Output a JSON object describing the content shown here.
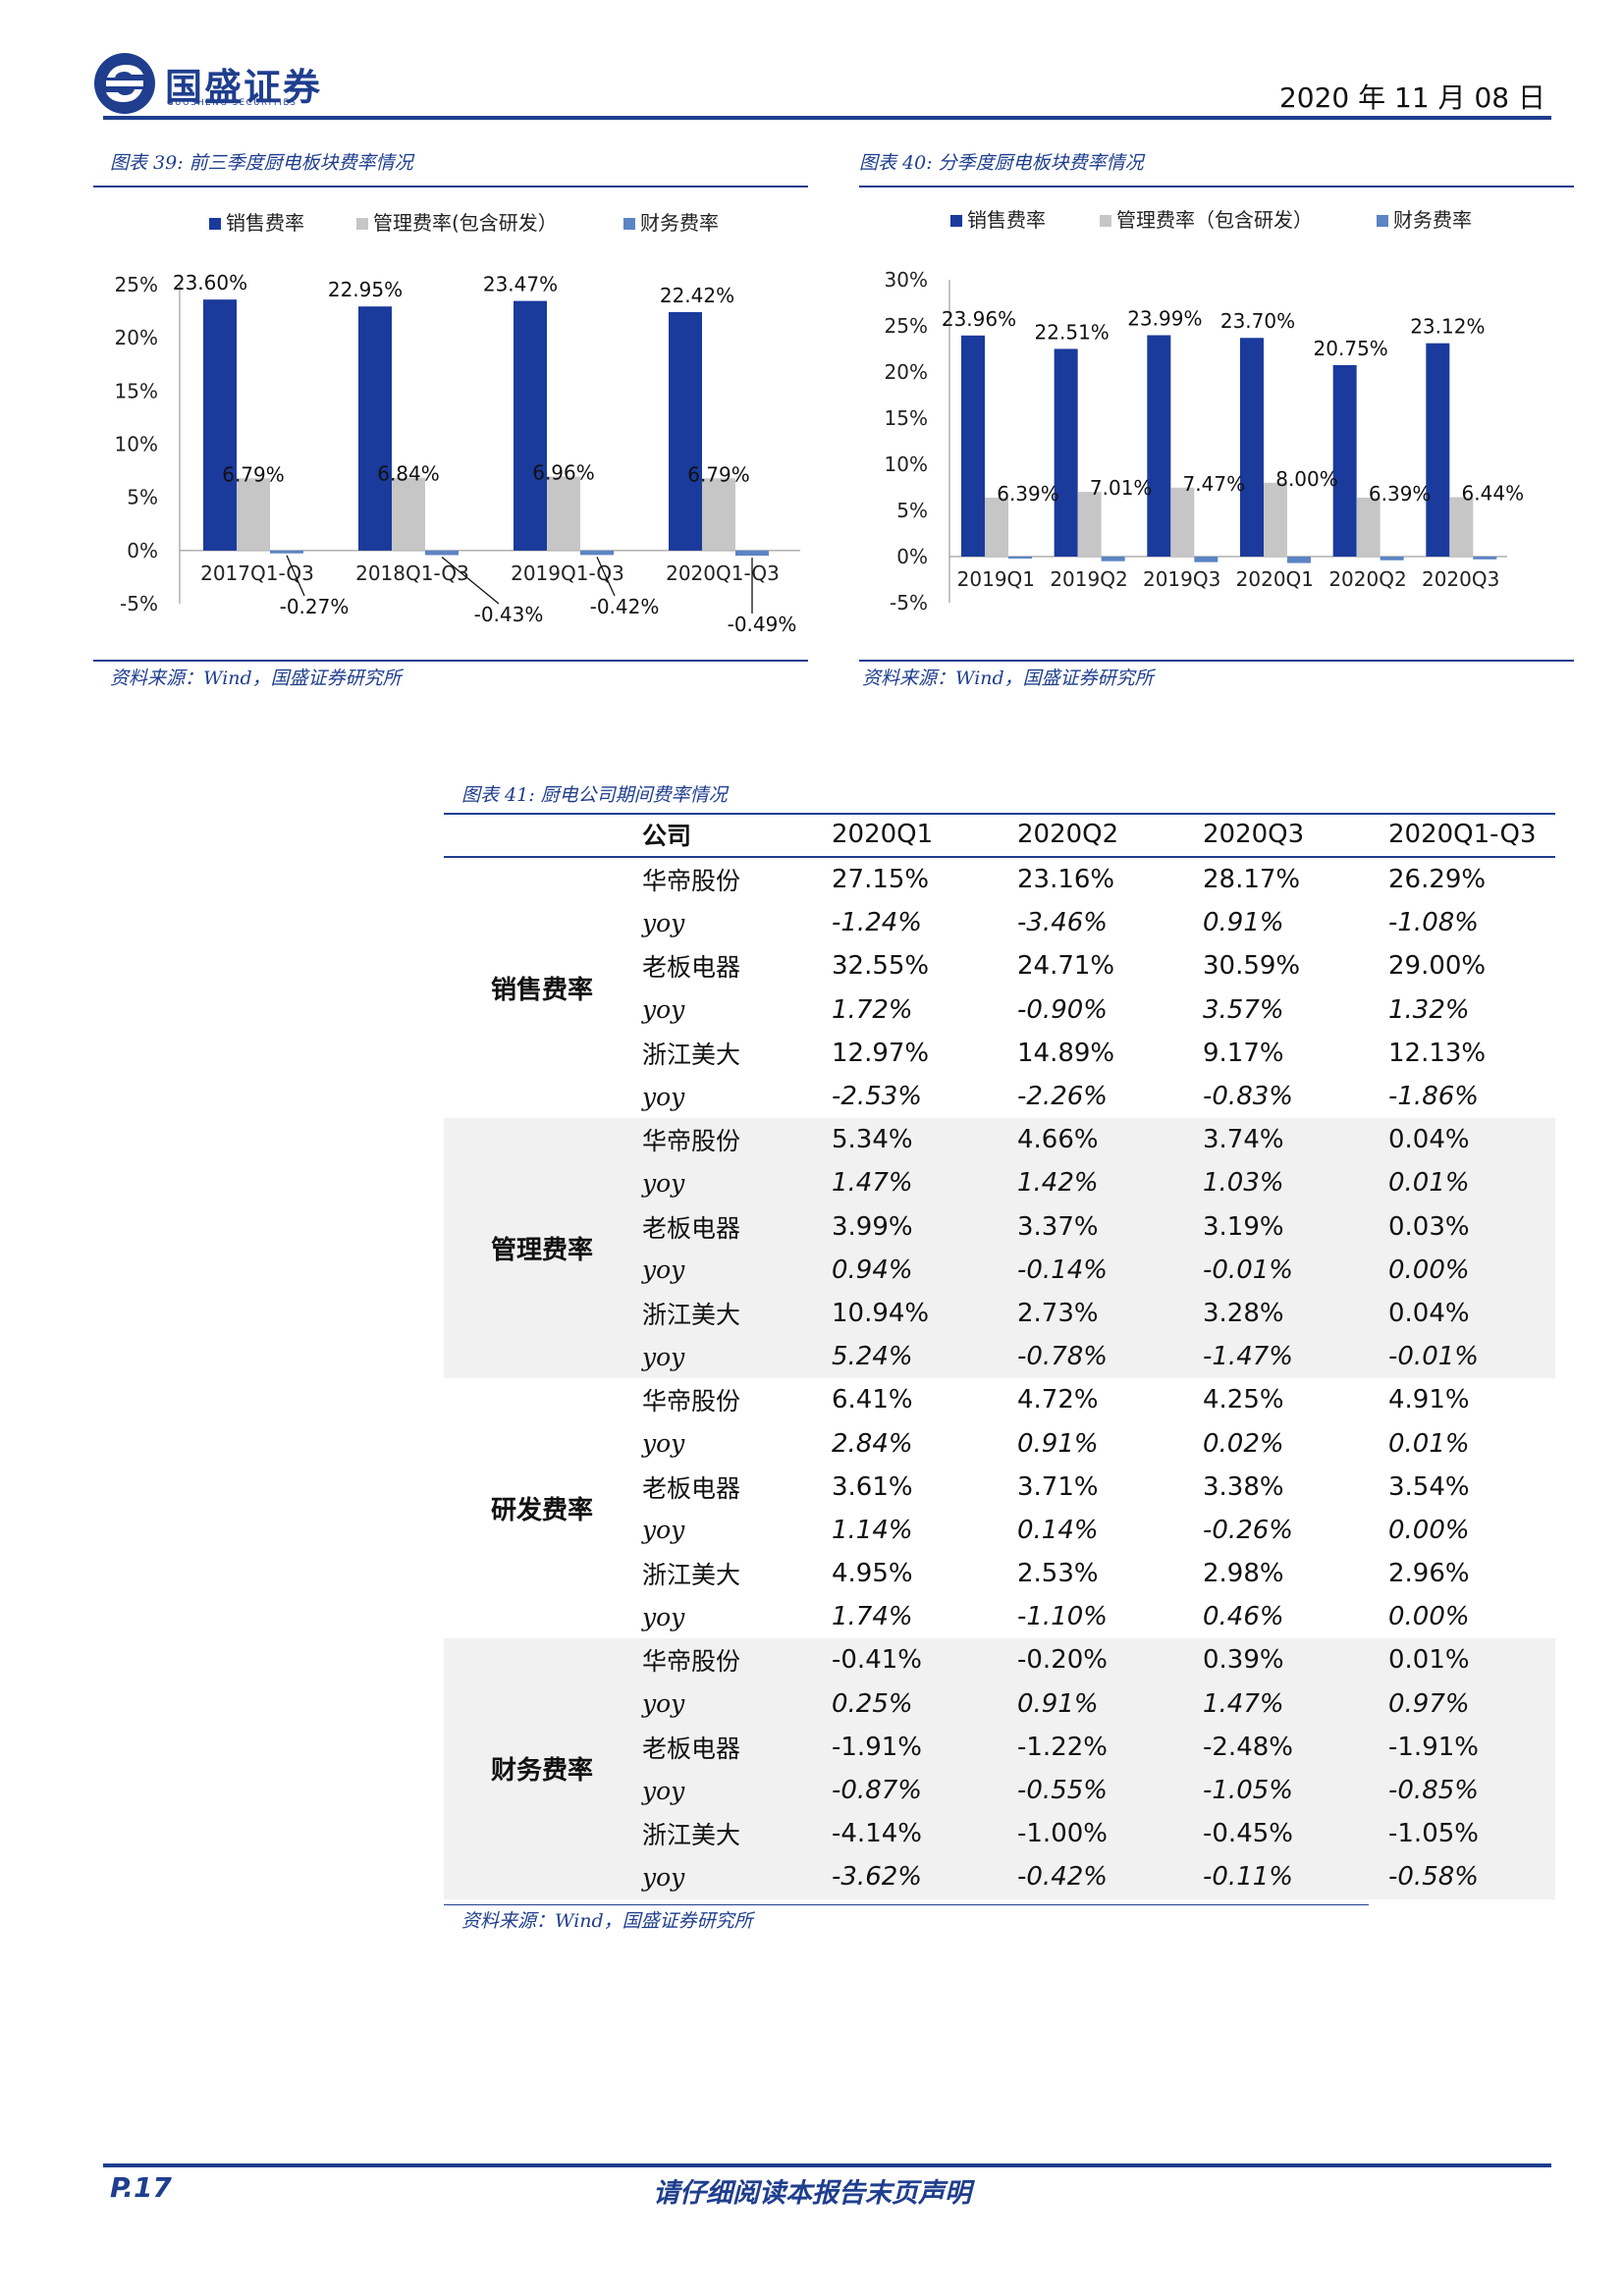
{
  "header": {
    "company_cn": "国盛证券",
    "company_en": "GUOSHENG SECURITIES",
    "date": "2020 年 11 月 08 日"
  },
  "colors": {
    "brand": "#1f3e8e",
    "sales": "#1a3a9c",
    "mgmt": "#c6c6c6",
    "fin": "#5b84c4"
  },
  "charts": [
    {
      "caption": "图表 39:  前三季度厨电板块费率情况",
      "source": "资料来源：Wind，国盛证券研究所",
      "legend": [
        "销售费率",
        "管理费率(包含研发）",
        "财务费率"
      ]
    },
    {
      "caption": "图表 40:  分季度厨电板块费率情况",
      "source": "资料来源：Wind，国盛证券研究所",
      "legend": [
        "销售费率",
        "管理费率（包含研发）",
        "财务费率"
      ]
    }
  ],
  "chart_data": [
    {
      "type": "bar",
      "categories": [
        "2017Q1-Q3",
        "2018Q1-Q3",
        "2019Q1-Q3",
        "2020Q1-Q3"
      ],
      "series": [
        {
          "name": "销售费率",
          "values": [
            23.6,
            22.95,
            23.47,
            22.42
          ],
          "labels": [
            "23.60%",
            "22.95%",
            "23.47%",
            "22.42%"
          ]
        },
        {
          "name": "管理费率(包含研发）",
          "values": [
            6.79,
            6.84,
            6.96,
            6.79
          ],
          "labels": [
            "6.79%",
            "6.84%",
            "6.96%",
            "6.79%"
          ]
        },
        {
          "name": "财务费率",
          "values": [
            -0.27,
            -0.43,
            -0.42,
            -0.49
          ],
          "labels": [
            "-0.27%",
            "-0.43%",
            "-0.42%",
            "-0.49%"
          ]
        }
      ],
      "yticks": [
        "25%",
        "20%",
        "15%",
        "10%",
        "5%",
        "0%",
        "-5%"
      ],
      "ylim": [
        -5,
        25
      ],
      "legend_position": "top"
    },
    {
      "type": "bar",
      "categories": [
        "2019Q1",
        "2019Q2",
        "2019Q3",
        "2020Q1",
        "2020Q2",
        "2020Q3"
      ],
      "series": [
        {
          "name": "销售费率",
          "values": [
            23.96,
            22.51,
            23.99,
            23.7,
            20.75,
            23.12
          ],
          "labels": [
            "23.96%",
            "22.51%",
            "23.99%",
            "23.70%",
            "20.75%",
            "23.12%"
          ]
        },
        {
          "name": "管理费率（包含研发）",
          "values": [
            6.39,
            7.01,
            7.47,
            8.0,
            6.39,
            6.44
          ],
          "labels": [
            "6.39%",
            "7.01%",
            "7.47%",
            "8.00%",
            "6.39%",
            "6.44%"
          ]
        },
        {
          "name": "财务费率",
          "values": [
            -0.2,
            -0.5,
            -0.6,
            -0.7,
            -0.4,
            -0.3
          ],
          "labels": []
        }
      ],
      "yticks": [
        "30%",
        "25%",
        "20%",
        "15%",
        "10%",
        "5%",
        "0%",
        "-5%"
      ],
      "ylim": [
        -5,
        30
      ],
      "legend_position": "top"
    }
  ],
  "table": {
    "caption": "图表 41:  厨电公司期间费率情况",
    "source": "资料来源：Wind，国盛证券研究所",
    "headers": [
      "",
      "公司",
      "2020Q1",
      "2020Q2",
      "2020Q3",
      "2020Q1-Q3"
    ],
    "groups": [
      {
        "category": "销售费率",
        "rows": [
          [
            "华帝股份",
            "27.15%",
            "23.16%",
            "28.17%",
            "26.29%"
          ],
          [
            "yoy",
            "-1.24%",
            "-3.46%",
            "0.91%",
            "-1.08%"
          ],
          [
            "老板电器",
            "32.55%",
            "24.71%",
            "30.59%",
            "29.00%"
          ],
          [
            "yoy",
            "1.72%",
            "-0.90%",
            "3.57%",
            "1.32%"
          ],
          [
            "浙江美大",
            "12.97%",
            "14.89%",
            "9.17%",
            "12.13%"
          ],
          [
            "yoy",
            "-2.53%",
            "-2.26%",
            "-0.83%",
            "-1.86%"
          ]
        ]
      },
      {
        "category": "管理费率",
        "rows": [
          [
            "华帝股份",
            "5.34%",
            "4.66%",
            "3.74%",
            "0.04%"
          ],
          [
            "yoy",
            "1.47%",
            "1.42%",
            "1.03%",
            "0.01%"
          ],
          [
            "老板电器",
            "3.99%",
            "3.37%",
            "3.19%",
            "0.03%"
          ],
          [
            "yoy",
            "0.94%",
            "-0.14%",
            "-0.01%",
            "0.00%"
          ],
          [
            "浙江美大",
            "10.94%",
            "2.73%",
            "3.28%",
            "0.04%"
          ],
          [
            "yoy",
            "5.24%",
            "-0.78%",
            "-1.47%",
            "-0.01%"
          ]
        ]
      },
      {
        "category": "研发费率",
        "rows": [
          [
            "华帝股份",
            "6.41%",
            "4.72%",
            "4.25%",
            "4.91%"
          ],
          [
            "yoy",
            "2.84%",
            "0.91%",
            "0.02%",
            "0.01%"
          ],
          [
            "老板电器",
            "3.61%",
            "3.71%",
            "3.38%",
            "3.54%"
          ],
          [
            "yoy",
            "1.14%",
            "0.14%",
            "-0.26%",
            "0.00%"
          ],
          [
            "浙江美大",
            "4.95%",
            "2.53%",
            "2.98%",
            "2.96%"
          ],
          [
            "yoy",
            "1.74%",
            "-1.10%",
            "0.46%",
            "0.00%"
          ]
        ]
      },
      {
        "category": "财务费率",
        "rows": [
          [
            "华帝股份",
            "-0.41%",
            "-0.20%",
            "0.39%",
            "0.01%"
          ],
          [
            "yoy",
            "0.25%",
            "0.91%",
            "1.47%",
            "0.97%"
          ],
          [
            "老板电器",
            "-1.91%",
            "-1.22%",
            "-2.48%",
            "-1.91%"
          ],
          [
            "yoy",
            "-0.87%",
            "-0.55%",
            "-1.05%",
            "-0.85%"
          ],
          [
            "浙江美大",
            "-4.14%",
            "-1.00%",
            "-0.45%",
            "-1.05%"
          ],
          [
            "yoy",
            "-3.62%",
            "-0.42%",
            "-0.11%",
            "-0.58%"
          ]
        ]
      }
    ]
  },
  "footer": {
    "page": "P.17",
    "disclaimer": "请仔细阅读本报告末页声明"
  }
}
